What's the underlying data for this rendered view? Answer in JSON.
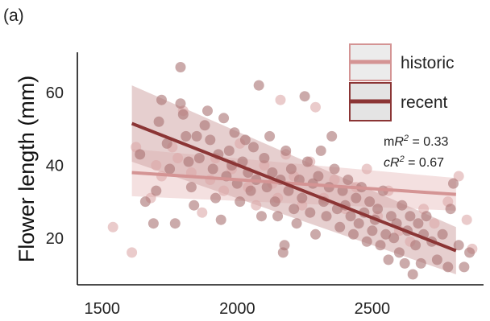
{
  "panel_label": "(a)",
  "colors": {
    "historic": "#d49494",
    "recent": "#8b3535",
    "historic_band": "#ebc6c6",
    "recent_band": "#d2a8a8",
    "point_historic": "#dca8a8",
    "point_recent": "#a87272"
  },
  "stats": {
    "m_prefix": "m",
    "c_prefix": "c",
    "r": "R",
    "sup": "2",
    "m_value": " = 0.33",
    "c_value": "  = 0.67"
  },
  "chart_data": {
    "type": "scatter",
    "title": "",
    "xlabel": "",
    "ylabel": "Flower length (mm)",
    "xlim": [
      1450,
      2900
    ],
    "ylim": [
      8,
      70
    ],
    "x_ticks": [
      1500,
      2000,
      2500
    ],
    "y_ticks": [
      20,
      40,
      60
    ],
    "grid": false,
    "legend_position": "top-right",
    "series": [
      {
        "name": "historic",
        "points": [
          [
            1540,
            23
          ],
          [
            1610,
            16
          ],
          [
            1625,
            45
          ],
          [
            1680,
            31
          ],
          [
            1700,
            40
          ],
          [
            1720,
            37
          ],
          [
            1760,
            45
          ],
          [
            1780,
            42
          ],
          [
            1800,
            55
          ],
          [
            1830,
            38
          ],
          [
            1870,
            27
          ],
          [
            1900,
            36
          ],
          [
            1920,
            42
          ],
          [
            1950,
            33
          ],
          [
            1980,
            39
          ],
          [
            2010,
            46
          ],
          [
            2040,
            34
          ],
          [
            2070,
            29
          ],
          [
            2100,
            40
          ],
          [
            2130,
            35
          ],
          [
            2150,
            31
          ],
          [
            2160,
            58
          ],
          [
            2180,
            43
          ],
          [
            2210,
            37
          ],
          [
            2240,
            29
          ],
          [
            2270,
            41
          ],
          [
            2290,
            56
          ],
          [
            2320,
            31
          ],
          [
            2360,
            36
          ],
          [
            2400,
            28
          ],
          [
            2440,
            34
          ],
          [
            2480,
            39
          ],
          [
            2520,
            26
          ],
          [
            2560,
            33
          ],
          [
            2600,
            22
          ],
          [
            2640,
            19
          ],
          [
            2690,
            28
          ],
          [
            2730,
            24
          ],
          [
            2780,
            30
          ],
          [
            2820,
            37
          ],
          [
            2850,
            25
          ],
          [
            2870,
            17
          ]
        ],
        "trend": {
          "x": [
            1610,
            2810
          ],
          "y": [
            38,
            32
          ]
        },
        "ci_band": {
          "x": [
            1610,
            2810
          ],
          "lower": [
            31.5,
            27.5
          ],
          "upper": [
            44.5,
            36.5
          ]
        }
      },
      {
        "name": "recent",
        "points": [
          [
            1640,
            43
          ],
          [
            1660,
            30
          ],
          [
            1690,
            24
          ],
          [
            1700,
            33
          ],
          [
            1710,
            52
          ],
          [
            1720,
            58
          ],
          [
            1740,
            46
          ],
          [
            1750,
            39
          ],
          [
            1770,
            24
          ],
          [
            1790,
            67
          ],
          [
            1790,
            57
          ],
          [
            1800,
            54
          ],
          [
            1810,
            48
          ],
          [
            1820,
            41
          ],
          [
            1830,
            34
          ],
          [
            1840,
            29
          ],
          [
            1850,
            48
          ],
          [
            1860,
            42
          ],
          [
            1880,
            51
          ],
          [
            1890,
            55
          ],
          [
            1900,
            47
          ],
          [
            1910,
            39
          ],
          [
            1920,
            31
          ],
          [
            1930,
            43
          ],
          [
            1940,
            25
          ],
          [
            1950,
            53
          ],
          [
            1960,
            37
          ],
          [
            1970,
            44
          ],
          [
            1980,
            40
          ],
          [
            1990,
            49
          ],
          [
            2000,
            35
          ],
          [
            2010,
            30
          ],
          [
            2020,
            41
          ],
          [
            2030,
            47
          ],
          [
            2040,
            38
          ],
          [
            2050,
            33
          ],
          [
            2060,
            45
          ],
          [
            2070,
            36
          ],
          [
            2080,
            62
          ],
          [
            2090,
            26
          ],
          [
            2100,
            42
          ],
          [
            2110,
            34
          ],
          [
            2120,
            48
          ],
          [
            2130,
            38
          ],
          [
            2140,
            30
          ],
          [
            2150,
            26
          ],
          [
            2160,
            36
          ],
          [
            2170,
            16
          ],
          [
            2175,
            18
          ],
          [
            2180,
            44
          ],
          [
            2190,
            33
          ],
          [
            2200,
            39
          ],
          [
            2210,
            28
          ],
          [
            2220,
            24
          ],
          [
            2230,
            36
          ],
          [
            2240,
            31
          ],
          [
            2250,
            59
          ],
          [
            2260,
            41
          ],
          [
            2270,
            27
          ],
          [
            2280,
            35
          ],
          [
            2290,
            21
          ],
          [
            2300,
            37
          ],
          [
            2310,
            44
          ],
          [
            2320,
            30
          ],
          [
            2330,
            26
          ],
          [
            2340,
            34
          ],
          [
            2350,
            48
          ],
          [
            2360,
            39
          ],
          [
            2370,
            28
          ],
          [
            2380,
            23
          ],
          [
            2390,
            33
          ],
          [
            2400,
            29
          ],
          [
            2410,
            36
          ],
          [
            2420,
            26
          ],
          [
            2430,
            21
          ],
          [
            2440,
            31
          ],
          [
            2450,
            24
          ],
          [
            2460,
            34
          ],
          [
            2470,
            27
          ],
          [
            2480,
            19
          ],
          [
            2490,
            30
          ],
          [
            2500,
            22
          ],
          [
            2510,
            25
          ],
          [
            2520,
            28
          ],
          [
            2530,
            18
          ],
          [
            2540,
            33
          ],
          [
            2550,
            21
          ],
          [
            2560,
            14
          ],
          [
            2570,
            26
          ],
          [
            2580,
            20
          ],
          [
            2590,
            24
          ],
          [
            2600,
            16
          ],
          [
            2610,
            29
          ],
          [
            2620,
            13
          ],
          [
            2630,
            22
          ],
          [
            2640,
            26
          ],
          [
            2650,
            10
          ],
          [
            2660,
            18
          ],
          [
            2670,
            24
          ],
          [
            2680,
            13
          ],
          [
            2690,
            21
          ],
          [
            2700,
            26
          ],
          [
            2720,
            19
          ],
          [
            2740,
            14
          ],
          [
            2760,
            21
          ],
          [
            2780,
            12
          ],
          [
            2790,
            28
          ],
          [
            2800,
            35
          ],
          [
            2820,
            18
          ],
          [
            2840,
            12
          ],
          [
            2860,
            16
          ]
        ],
        "trend": {
          "x": [
            1610,
            2810
          ],
          "y": [
            51.5,
            16.5
          ]
        },
        "ci_band": {
          "x": [
            1610,
            2810
          ],
          "lower": [
            41,
            10
          ],
          "upper": [
            62,
            23
          ]
        }
      }
    ]
  }
}
